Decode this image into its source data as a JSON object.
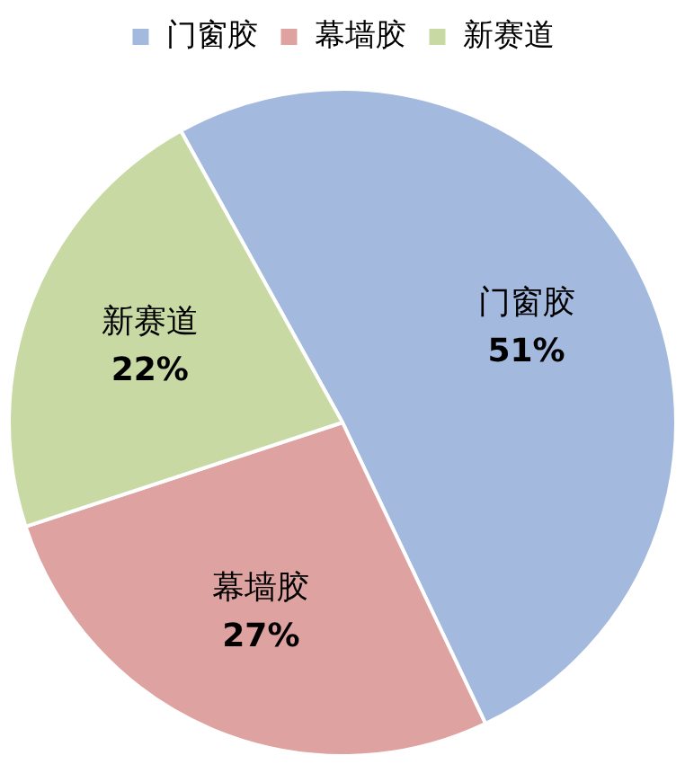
{
  "chart_data": {
    "type": "pie",
    "categories": [
      "门窗胶",
      "幕墙胶",
      "新赛道"
    ],
    "values": [
      51,
      27,
      22
    ],
    "colors": [
      "#a3b9de",
      "#dea2a0",
      "#c8d9a4"
    ],
    "value_labels": [
      "51%",
      "27%",
      "22%"
    ],
    "legend": "top"
  }
}
